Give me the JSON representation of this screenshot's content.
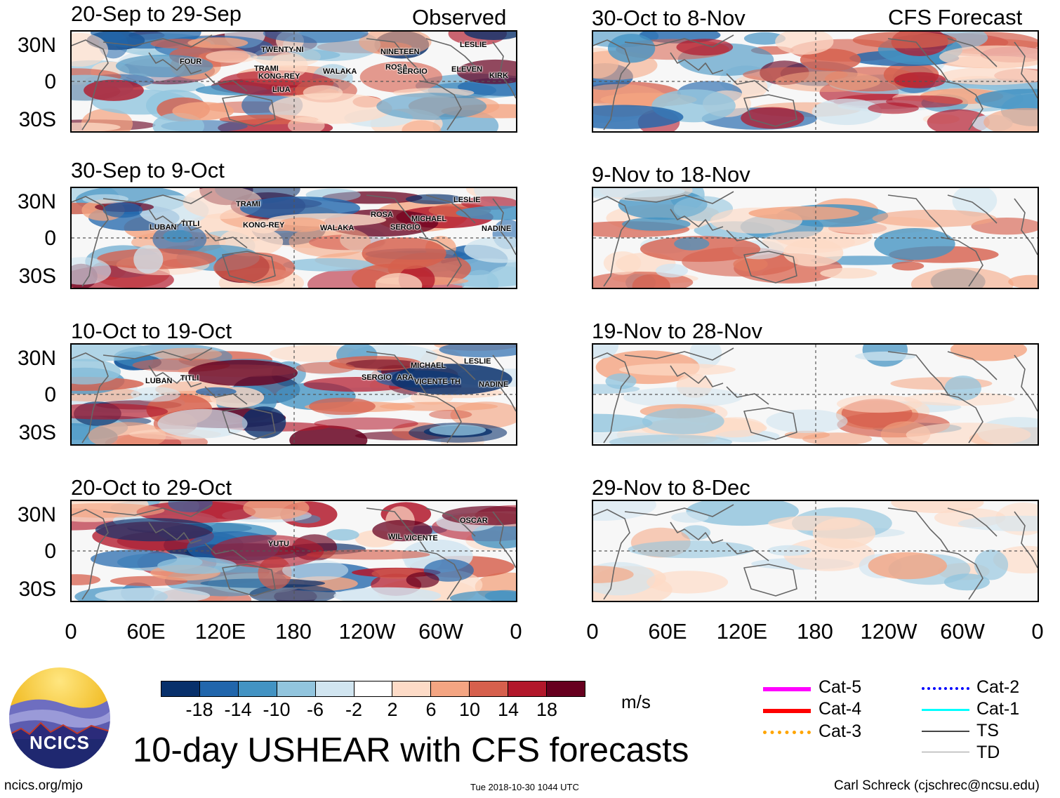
{
  "header": {
    "observed_label": "Observed",
    "forecast_label": "CFS Forecast"
  },
  "observed_panels": [
    {
      "title": "20-Sep to 29-Sep",
      "storms": [
        "FOUR",
        "TWENTY-NI",
        "TRAMI",
        "KONG-REY",
        "WALAKA",
        "LIUA",
        "NINETEEN",
        "ROSA",
        "SERGIO",
        "LESLIE",
        "ELEVEN",
        "KIRK"
      ]
    },
    {
      "title": "30-Sep to 9-Oct",
      "storms": [
        "LUBAN",
        "TITLI",
        "TRAMI",
        "KONG-REY",
        "WALAKA",
        "ROSA",
        "MICHAEL",
        "SERGIO",
        "LESLIE",
        "NADINE"
      ]
    },
    {
      "title": "10-Oct to 19-Oct",
      "storms": [
        "LUBAN",
        "TITLI",
        "SERGIO",
        "ARA",
        "MICHAEL",
        "VICENTE-TH",
        "LESLIE",
        "NADINE"
      ]
    },
    {
      "title": "20-Oct to 29-Oct",
      "storms": [
        "YUTU",
        "WIL",
        "VICENTE",
        "OSCAR"
      ]
    }
  ],
  "forecast_panels": [
    {
      "title": "30-Oct to 8-Nov"
    },
    {
      "title": "9-Nov to 18-Nov"
    },
    {
      "title": "19-Nov to 28-Nov"
    },
    {
      "title": "29-Nov to 8-Dec"
    }
  ],
  "lat_labels": [
    "30N",
    "0",
    "30S"
  ],
  "lon_labels": [
    "0",
    "60E",
    "120E",
    "180",
    "120W",
    "60W",
    "0"
  ],
  "colorbar": {
    "colors": [
      "#08306b",
      "#2166ac",
      "#4393c3",
      "#92c5de",
      "#d1e5f0",
      "#ffffff",
      "#fddbc7",
      "#f4a582",
      "#d6604d",
      "#b2182b",
      "#67001f"
    ],
    "tick_labels": [
      "-18",
      "-14",
      "-10",
      "-6",
      "-2",
      "2",
      "6",
      "10",
      "14",
      "18"
    ],
    "units": "m/s"
  },
  "legend": [
    {
      "label": "Cat-5",
      "color": "#ff00ff"
    },
    {
      "label": "Cat-4",
      "color": "#ff0000"
    },
    {
      "label": "Cat-3",
      "color": "#ffa500"
    },
    {
      "label": "Cat-2",
      "color": "#0000ff"
    },
    {
      "label": "Cat-1",
      "color": "#00ffff"
    },
    {
      "label": "TS",
      "color": "#444444"
    },
    {
      "label": "TD",
      "color": "#999999"
    }
  ],
  "footer": {
    "logo_text": "NCICS",
    "main_title": "10-day USHEAR with CFS forecasts",
    "url": "ncics.org/mjo",
    "timestamp": "Tue 2018-10-30 1044 UTC",
    "credit": "Carl Schreck (cjschrec@ncsu.edu)"
  }
}
